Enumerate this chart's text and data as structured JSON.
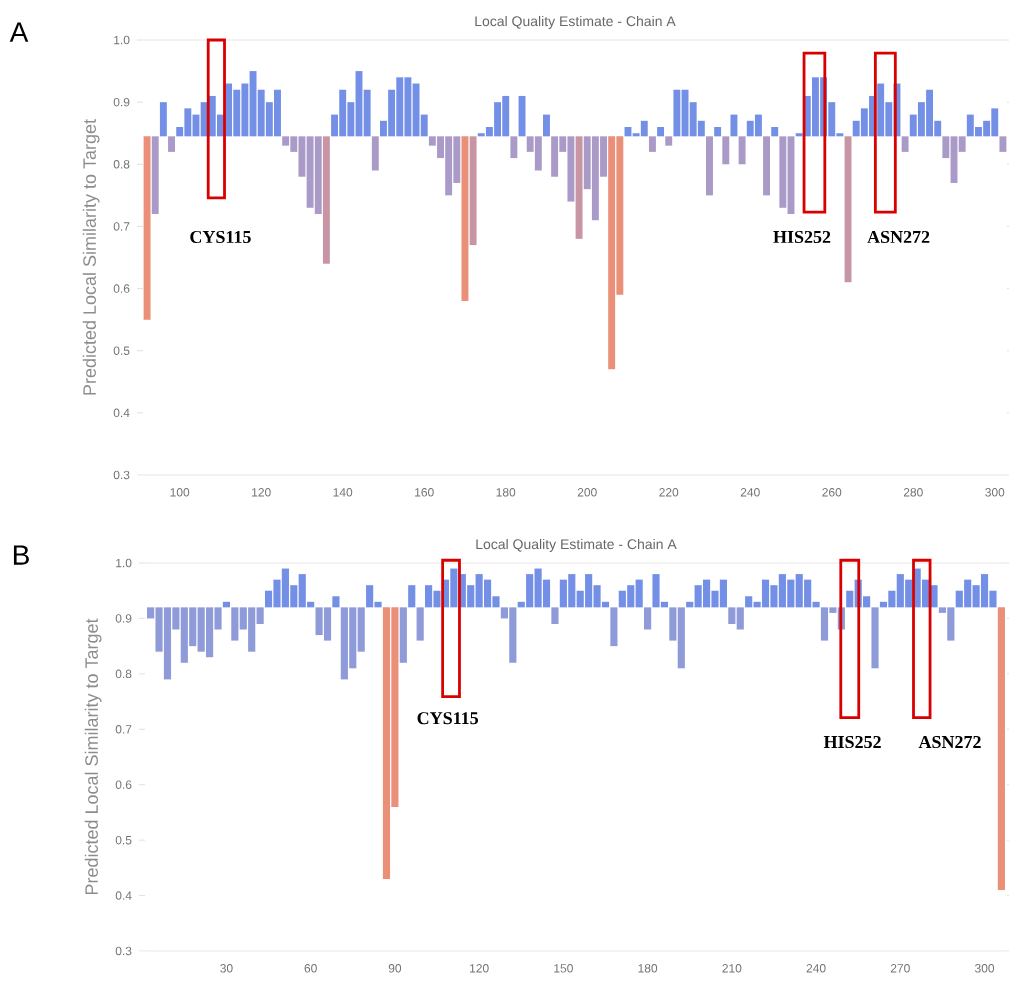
{
  "chart_data": [
    {
      "type": "bar",
      "title": "Local Quality Estimate - Chain A",
      "ylabel": "Predicted Local Similarity to Target",
      "xlim": [
        91,
        303
      ],
      "ylim": [
        0.3,
        1.0
      ],
      "xticks": [
        100,
        120,
        140,
        160,
        180,
        200,
        220,
        240,
        260,
        280,
        300
      ],
      "yticks": [
        0.3,
        0.4,
        0.5,
        0.6,
        0.7,
        0.8,
        0.9,
        {
          "value": 1.0,
          "label": "1.0"
        }
      ],
      "x": [
        92,
        94,
        96,
        98,
        100,
        102,
        104,
        106,
        108,
        110,
        112,
        114,
        116,
        118,
        120,
        122,
        124,
        126,
        128,
        130,
        132,
        134,
        136,
        138,
        140,
        142,
        144,
        146,
        148,
        150,
        152,
        154,
        156,
        158,
        160,
        162,
        164,
        166,
        168,
        170,
        172,
        174,
        176,
        178,
        180,
        182,
        184,
        186,
        188,
        190,
        192,
        194,
        196,
        198,
        200,
        202,
        204,
        206,
        208,
        210,
        212,
        214,
        216,
        218,
        220,
        222,
        224,
        226,
        228,
        230,
        232,
        234,
        236,
        238,
        240,
        242,
        244,
        246,
        248,
        250,
        252,
        254,
        256,
        258,
        260,
        262,
        264,
        266,
        268,
        270,
        272,
        274,
        276,
        278,
        280,
        282,
        284,
        286,
        288,
        290,
        292,
        294,
        296,
        298,
        300,
        302
      ],
      "values": [
        -0.295,
        -0.125,
        0.055,
        -0.025,
        0.015,
        0.045,
        0.035,
        0.055,
        0.065,
        0.035,
        0.085,
        0.075,
        0.085,
        0.105,
        0.075,
        0.055,
        0.075,
        -0.015,
        -0.025,
        -0.065,
        -0.115,
        -0.125,
        -0.205,
        0.035,
        0.075,
        0.055,
        0.105,
        0.075,
        -0.055,
        0.025,
        0.075,
        0.095,
        0.095,
        0.085,
        0.035,
        -0.015,
        -0.035,
        -0.095,
        -0.075,
        -0.265,
        -0.175,
        0.005,
        0.015,
        0.055,
        0.065,
        -0.035,
        0.065,
        -0.025,
        -0.055,
        0.035,
        -0.065,
        -0.025,
        -0.105,
        -0.165,
        -0.085,
        -0.135,
        -0.065,
        -0.375,
        -0.255,
        0.015,
        0.005,
        0.025,
        -0.025,
        0.015,
        -0.015,
        0.075,
        0.075,
        0.055,
        0.025,
        -0.095,
        0.015,
        -0.045,
        0.035,
        -0.045,
        0.025,
        0.035,
        -0.095,
        0.015,
        -0.115,
        -0.125,
        0.005,
        0.065,
        0.095,
        0.095,
        0.055,
        0.005,
        -0.235,
        0.025,
        0.045,
        0.065,
        0.085,
        0.055,
        0.085,
        -0.025,
        0.035,
        0.055,
        0.075,
        0.025,
        -0.035,
        -0.075,
        -0.025,
        0.035,
        0.015,
        0.025,
        0.045,
        -0.025
      ],
      "base": [
        0.845,
        0.845,
        0.845,
        0.845,
        0.845,
        0.845,
        0.845,
        0.845,
        0.845,
        0.845,
        0.845,
        0.845,
        0.845,
        0.845,
        0.845,
        0.845,
        0.845,
        0.845,
        0.845,
        0.845,
        0.845,
        0.845,
        0.845,
        0.845,
        0.845,
        0.845,
        0.845,
        0.845,
        0.845,
        0.845,
        0.845,
        0.845,
        0.845,
        0.845,
        0.845,
        0.845,
        0.845,
        0.845,
        0.845,
        0.845,
        0.845,
        0.845,
        0.845,
        0.845,
        0.845,
        0.845,
        0.845,
        0.845,
        0.845,
        0.845,
        0.845,
        0.845,
        0.845,
        0.845,
        0.845,
        0.845,
        0.845,
        0.845,
        0.845,
        0.845,
        0.845,
        0.845,
        0.845,
        0.845,
        0.845,
        0.845,
        0.845,
        0.845,
        0.845,
        0.845,
        0.845,
        0.845,
        0.845,
        0.845,
        0.845,
        0.845,
        0.845,
        0.845,
        0.845,
        0.845,
        0.845,
        0.845,
        0.845,
        0.845,
        0.845,
        0.845,
        0.845,
        0.845,
        0.845,
        0.845,
        0.845,
        0.845,
        0.845,
        0.845,
        0.845,
        0.845,
        0.845,
        0.845,
        0.845,
        0.845,
        0.845,
        0.845,
        0.845,
        0.845,
        0.845,
        0.845
      ],
      "colors": [
        "#ea8f78",
        "#a99ac8",
        "#7390e6",
        "#a99ac8",
        "#7390e6",
        "#7390e6",
        "#7390e6",
        "#7390e6",
        "#7390e6",
        "#7390e6",
        "#7390e6",
        "#7390e6",
        "#7390e6",
        "#7390e6",
        "#7390e6",
        "#7390e6",
        "#7390e6",
        "#a99ac8",
        "#a99ac8",
        "#a99ac8",
        "#a99ac8",
        "#a99ac8",
        "#c895a4",
        "#7390e6",
        "#7390e6",
        "#7390e6",
        "#7390e6",
        "#7390e6",
        "#a99ac8",
        "#7390e6",
        "#7390e6",
        "#7390e6",
        "#7390e6",
        "#7390e6",
        "#7390e6",
        "#a99ac8",
        "#a99ac8",
        "#a99ac8",
        "#a99ac8",
        "#ea8f78",
        "#c895a4",
        "#7390e6",
        "#7390e6",
        "#7390e6",
        "#7390e6",
        "#a99ac8",
        "#7390e6",
        "#a99ac8",
        "#a99ac8",
        "#7390e6",
        "#a99ac8",
        "#a99ac8",
        "#a99ac8",
        "#c895a4",
        "#a99ac8",
        "#a99ac8",
        "#a99ac8",
        "#ea8f78",
        "#ea8f78",
        "#7390e6",
        "#7390e6",
        "#7390e6",
        "#a99ac8",
        "#7390e6",
        "#a99ac8",
        "#7390e6",
        "#7390e6",
        "#7390e6",
        "#7390e6",
        "#a99ac8",
        "#7390e6",
        "#a99ac8",
        "#7390e6",
        "#a99ac8",
        "#7390e6",
        "#7390e6",
        "#a99ac8",
        "#7390e6",
        "#a99ac8",
        "#a99ac8",
        "#7390e6",
        "#7390e6",
        "#7390e6",
        "#7390e6",
        "#7390e6",
        "#7390e6",
        "#c895a4",
        "#7390e6",
        "#7390e6",
        "#7390e6",
        "#7390e6",
        "#7390e6",
        "#7390e6",
        "#a99ac8",
        "#7390e6",
        "#7390e6",
        "#7390e6",
        "#7390e6",
        "#a99ac8",
        "#a99ac8",
        "#a99ac8",
        "#7390e6",
        "#7390e6",
        "#7390e6",
        "#7390e6",
        "#a99ac8"
      ],
      "annotations": [
        "A",
        "CYS115",
        "HIS252",
        "ASN272"
      ]
    },
    {
      "type": "bar",
      "title": "Local Quality Estimate - Chain A",
      "ylabel": "Predicted Local Similarity to Target",
      "xlim": [
        1,
        308
      ],
      "ylim": [
        0.3,
        1.0
      ],
      "xticks": [
        30,
        60,
        90,
        120,
        150,
        180,
        210,
        240,
        270,
        300
      ],
      "yticks": [
        0.3,
        0.4,
        0.5,
        0.6,
        0.7,
        0.8,
        0.9,
        {
          "value": 1.0,
          "label": "1.0"
        }
      ],
      "x": [
        3,
        6,
        9,
        12,
        15,
        18,
        21,
        24,
        27,
        30,
        33,
        36,
        39,
        42,
        45,
        48,
        51,
        54,
        57,
        60,
        63,
        66,
        69,
        72,
        75,
        78,
        81,
        84,
        87,
        90,
        93,
        96,
        99,
        102,
        105,
        108,
        111,
        114,
        117,
        120,
        123,
        126,
        129,
        132,
        135,
        138,
        141,
        144,
        147,
        150,
        153,
        156,
        159,
        162,
        165,
        168,
        171,
        174,
        177,
        180,
        183,
        186,
        189,
        192,
        195,
        198,
        201,
        204,
        207,
        210,
        213,
        216,
        219,
        222,
        225,
        228,
        231,
        234,
        237,
        240,
        243,
        246,
        249,
        252,
        255,
        258,
        261,
        264,
        267,
        270,
        273,
        276,
        279,
        282,
        285,
        288,
        291,
        294,
        297,
        300,
        303,
        306
      ],
      "values": [
        -0.02,
        -0.08,
        -0.13,
        -0.04,
        -0.1,
        -0.07,
        -0.08,
        -0.09,
        -0.04,
        0.01,
        -0.06,
        -0.04,
        -0.08,
        -0.03,
        0.03,
        0.05,
        0.07,
        0.04,
        0.06,
        0.01,
        -0.05,
        -0.06,
        0.02,
        -0.13,
        -0.11,
        -0.08,
        0.04,
        0.01,
        -0.49,
        -0.36,
        -0.1,
        0.04,
        -0.06,
        0.04,
        0.03,
        0.05,
        0.07,
        0.06,
        0.04,
        0.06,
        0.05,
        0.02,
        -0.02,
        -0.1,
        0.01,
        0.06,
        0.07,
        0.05,
        -0.03,
        0.05,
        0.06,
        0.03,
        0.06,
        0.04,
        0.01,
        -0.07,
        0.03,
        0.04,
        0.05,
        -0.04,
        0.06,
        0.01,
        -0.06,
        -0.11,
        0.01,
        0.04,
        0.05,
        0.03,
        0.05,
        -0.03,
        -0.04,
        0.02,
        0.01,
        0.05,
        0.04,
        0.06,
        0.05,
        0.06,
        0.05,
        0.01,
        -0.06,
        -0.01,
        -0.04,
        0.03,
        0.05,
        0.02,
        -0.11,
        0.01,
        0.03,
        0.06,
        0.05,
        0.07,
        0.05,
        0.04,
        -0.01,
        -0.06,
        0.03,
        0.05,
        0.04,
        0.06,
        0.03,
        -0.51
      ],
      "base": [
        0.92,
        0.92,
        0.92,
        0.92,
        0.92,
        0.92,
        0.92,
        0.92,
        0.92,
        0.92,
        0.92,
        0.92,
        0.92,
        0.92,
        0.92,
        0.92,
        0.92,
        0.92,
        0.92,
        0.92,
        0.92,
        0.92,
        0.92,
        0.92,
        0.92,
        0.92,
        0.92,
        0.92,
        0.92,
        0.92,
        0.92,
        0.92,
        0.92,
        0.92,
        0.92,
        0.92,
        0.92,
        0.92,
        0.92,
        0.92,
        0.92,
        0.92,
        0.92,
        0.92,
        0.92,
        0.92,
        0.92,
        0.92,
        0.92,
        0.92,
        0.92,
        0.92,
        0.92,
        0.92,
        0.92,
        0.92,
        0.92,
        0.92,
        0.92,
        0.92,
        0.92,
        0.92,
        0.92,
        0.92,
        0.92,
        0.92,
        0.92,
        0.92,
        0.92,
        0.92,
        0.92,
        0.92,
        0.92,
        0.92,
        0.92,
        0.92,
        0.92,
        0.92,
        0.92,
        0.92,
        0.92,
        0.92,
        0.92,
        0.92,
        0.92,
        0.92,
        0.92,
        0.92,
        0.92,
        0.92,
        0.92,
        0.92,
        0.92,
        0.92,
        0.92,
        0.92,
        0.92,
        0.92,
        0.92,
        0.92,
        0.92,
        0.92
      ],
      "colors": [
        "#8e9bd8",
        "#8e9bd8",
        "#8e9bd8",
        "#8e9bd8",
        "#8e9bd8",
        "#8e9bd8",
        "#8e9bd8",
        "#8e9bd8",
        "#8e9bd8",
        "#7390e6",
        "#8e9bd8",
        "#8e9bd8",
        "#8e9bd8",
        "#8e9bd8",
        "#7390e6",
        "#7390e6",
        "#7390e6",
        "#7390e6",
        "#7390e6",
        "#7390e6",
        "#8e9bd8",
        "#8e9bd8",
        "#7390e6",
        "#8e9bd8",
        "#8e9bd8",
        "#8e9bd8",
        "#7390e6",
        "#7390e6",
        "#ea8f78",
        "#ea8f78",
        "#8e9bd8",
        "#7390e6",
        "#8e9bd8",
        "#7390e6",
        "#7390e6",
        "#7390e6",
        "#7390e6",
        "#7390e6",
        "#7390e6",
        "#7390e6",
        "#7390e6",
        "#7390e6",
        "#8e9bd8",
        "#8e9bd8",
        "#7390e6",
        "#7390e6",
        "#7390e6",
        "#7390e6",
        "#8e9bd8",
        "#7390e6",
        "#7390e6",
        "#7390e6",
        "#7390e6",
        "#7390e6",
        "#7390e6",
        "#8e9bd8",
        "#7390e6",
        "#7390e6",
        "#7390e6",
        "#8e9bd8",
        "#7390e6",
        "#7390e6",
        "#8e9bd8",
        "#8e9bd8",
        "#7390e6",
        "#7390e6",
        "#7390e6",
        "#7390e6",
        "#7390e6",
        "#8e9bd8",
        "#8e9bd8",
        "#7390e6",
        "#7390e6",
        "#7390e6",
        "#7390e6",
        "#7390e6",
        "#7390e6",
        "#7390e6",
        "#7390e6",
        "#7390e6",
        "#8e9bd8",
        "#8e9bd8",
        "#8e9bd8",
        "#7390e6",
        "#7390e6",
        "#7390e6",
        "#8e9bd8",
        "#7390e6",
        "#7390e6",
        "#7390e6",
        "#7390e6",
        "#7390e6",
        "#7390e6",
        "#7390e6",
        "#8e9bd8",
        "#8e9bd8",
        "#7390e6",
        "#7390e6",
        "#7390e6",
        "#7390e6",
        "#7390e6",
        "#ea8f78"
      ],
      "annotations": [
        "B",
        "CYS115",
        "HIS252",
        "ASN272"
      ]
    }
  ]
}
